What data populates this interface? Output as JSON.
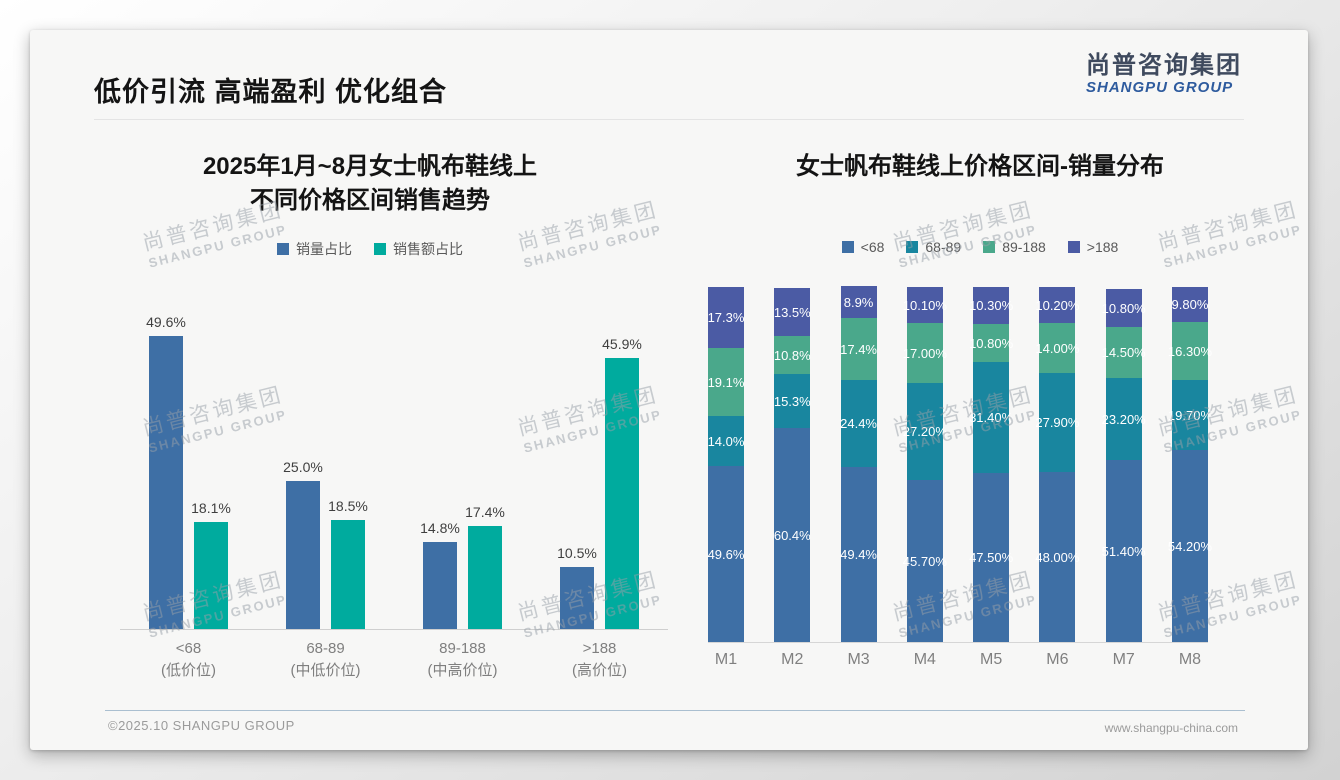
{
  "page": {
    "title": "低价引流 高端盈利 优化组合"
  },
  "logo": {
    "cn": "尚普咨询集团",
    "en": "SHANGPU GROUP"
  },
  "watermark": {
    "line1": "尚普咨询集团",
    "line2": "SHANGPU GROUP"
  },
  "footer": {
    "left": "©2025.10 SHANGPU GROUP",
    "right": "www.shangpu-china.com"
  },
  "chart_data": [
    {
      "type": "bar",
      "title_lines": [
        "2025年1月~8月女士帆布鞋线上",
        "不同价格区间销售趋势"
      ],
      "categories": [
        {
          "range": "<68",
          "tier": "(低价位)"
        },
        {
          "range": "68-89",
          "tier": "(中低价位)"
        },
        {
          "range": "89-188",
          "tier": "(中高价位)"
        },
        {
          "range": ">188",
          "tier": "(高价位)"
        }
      ],
      "series": [
        {
          "name": "销量占比",
          "color": "#3e6fa5",
          "values": [
            49.6,
            25.0,
            14.8,
            10.5
          ],
          "labels": [
            "49.6%",
            "25.0%",
            "14.8%",
            "10.5%"
          ]
        },
        {
          "name": "销售额占比",
          "color": "#00ab9e",
          "values": [
            18.1,
            18.5,
            17.4,
            45.9
          ],
          "labels": [
            "18.1%",
            "18.5%",
            "17.4%",
            "45.9%"
          ]
        }
      ],
      "ylabel": "",
      "ylim": [
        0,
        52
      ],
      "grid": false,
      "legend_position": "top"
    },
    {
      "type": "stacked-bar",
      "title": "女士帆布鞋线上价格区间-销量分布",
      "categories": [
        "M1",
        "M2",
        "M3",
        "M4",
        "M5",
        "M6",
        "M7",
        "M8"
      ],
      "series": [
        {
          "name": "<68",
          "color": "#3e6fa5",
          "values": [
            49.6,
            60.4,
            49.4,
            45.7,
            47.5,
            48.0,
            51.4,
            54.2
          ],
          "labels": [
            "49.6%",
            "60.4%",
            "49.4%",
            "45.70%",
            "47.50%",
            "48.00%",
            "51.40%",
            "54.20%"
          ]
        },
        {
          "name": "68-89",
          "color": "#19869f",
          "values": [
            14.0,
            15.3,
            24.4,
            27.2,
            31.4,
            27.9,
            23.2,
            19.7
          ],
          "labels": [
            "14.0%",
            "15.3%",
            "24.4%",
            "27.20%",
            "31.40%",
            "27.90%",
            "23.20%",
            "19.70%"
          ]
        },
        {
          "name": "89-188",
          "color": "#4aa88b",
          "values": [
            19.1,
            10.8,
            17.4,
            17.0,
            10.8,
            14.0,
            14.5,
            16.3
          ],
          "labels": [
            "19.1%",
            "10.8%",
            "17.4%",
            "17.00%",
            "10.80%",
            "14.00%",
            "14.50%",
            "16.30%"
          ]
        },
        {
          "name": ">188",
          "color": "#4b5ba4",
          "values": [
            17.3,
            13.5,
            8.9,
            10.1,
            10.3,
            10.2,
            10.8,
            9.8
          ],
          "labels": [
            "17.3%",
            "13.5%",
            "8.9%",
            "10.10%",
            "10.30%",
            "10.20%",
            "10.80%",
            "9.80%"
          ]
        }
      ],
      "stack_total": 100,
      "ylim": [
        0,
        100
      ],
      "grid": false,
      "legend_position": "top"
    }
  ]
}
